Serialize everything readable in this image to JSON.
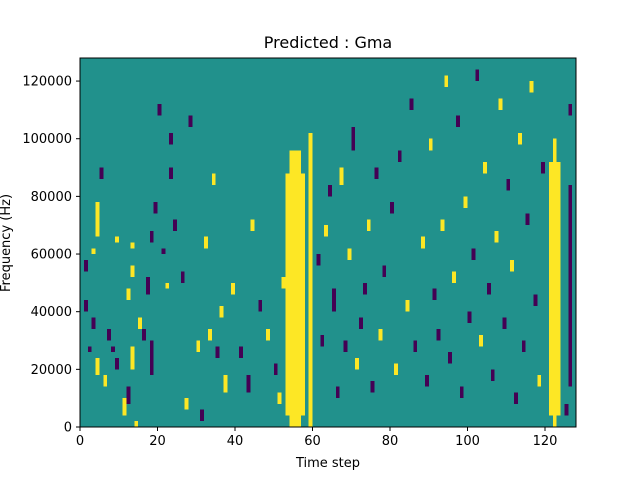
{
  "chart_data": {
    "type": "heatmap",
    "title": "Predicted : Gma",
    "xlabel": "Time step",
    "ylabel": "Frequency (Hz)",
    "xlim": [
      0,
      128
    ],
    "ylim": [
      0,
      128000
    ],
    "x_ticks": [
      0,
      20,
      40,
      60,
      80,
      100,
      120
    ],
    "y_ticks": [
      0,
      20000,
      40000,
      60000,
      80000,
      100000,
      120000
    ],
    "grid": false,
    "colormap": "viridis",
    "value_range": [
      -1,
      1
    ],
    "background_value": 0,
    "colors": {
      "low": "#440154",
      "mid": "#21918c",
      "high": "#fde725"
    },
    "time_steps": 128,
    "frequency_bins": 64,
    "bin_height_hz": 2000,
    "bands": [
      {
        "value": 1,
        "x": [
          53,
          58
        ],
        "y": [
          4000,
          88000
        ]
      },
      {
        "value": 1,
        "x": [
          54,
          57
        ],
        "y": [
          0,
          96000
        ]
      },
      {
        "value": 1,
        "x": [
          59,
          60
        ],
        "y": [
          0,
          102000
        ]
      },
      {
        "value": 1,
        "x": [
          121,
          124
        ],
        "y": [
          4000,
          92000
        ]
      },
      {
        "value": 1,
        "x": [
          122,
          123
        ],
        "y": [
          0,
          100000
        ]
      },
      {
        "value": -1,
        "x": [
          126,
          127
        ],
        "y": [
          14000,
          84000
        ]
      }
    ],
    "cells": [
      [
        1,
        2,
        54000,
        58000,
        -1
      ],
      [
        1,
        2,
        40000,
        44000,
        -1
      ],
      [
        2,
        3,
        26000,
        28000,
        -1
      ],
      [
        3,
        4,
        34000,
        38000,
        -1
      ],
      [
        4,
        5,
        22000,
        24000,
        1
      ],
      [
        5,
        6,
        86000,
        90000,
        -1
      ],
      [
        3,
        4,
        60000,
        62000,
        1
      ],
      [
        4,
        5,
        66000,
        78000,
        1
      ],
      [
        4,
        5,
        18000,
        22000,
        1
      ],
      [
        6,
        7,
        14000,
        18000,
        1
      ],
      [
        7,
        8,
        30000,
        34000,
        -1
      ],
      [
        8,
        9,
        26000,
        28000,
        -1
      ],
      [
        9,
        10,
        20000,
        24000,
        -1
      ],
      [
        9,
        10,
        64000,
        66000,
        1
      ],
      [
        11,
        12,
        4000,
        10000,
        1
      ],
      [
        12,
        13,
        8000,
        14000,
        -1
      ],
      [
        12,
        13,
        44000,
        48000,
        1
      ],
      [
        13,
        14,
        52000,
        56000,
        1
      ],
      [
        13,
        14,
        20000,
        28000,
        1
      ],
      [
        13,
        14,
        62000,
        64000,
        1
      ],
      [
        14,
        15,
        0,
        2000,
        1
      ],
      [
        15,
        16,
        34000,
        38000,
        1
      ],
      [
        16,
        17,
        30000,
        34000,
        -1
      ],
      [
        17,
        18,
        46000,
        52000,
        -1
      ],
      [
        18,
        19,
        18000,
        30000,
        -1
      ],
      [
        18,
        19,
        64000,
        68000,
        -1
      ],
      [
        19,
        20,
        74000,
        78000,
        -1
      ],
      [
        20,
        21,
        108000,
        112000,
        -1
      ],
      [
        21,
        22,
        60000,
        62000,
        -1
      ],
      [
        22,
        23,
        48000,
        50000,
        1
      ],
      [
        23,
        24,
        98000,
        102000,
        -1
      ],
      [
        23,
        24,
        86000,
        90000,
        -1
      ],
      [
        24,
        25,
        68000,
        72000,
        -1
      ],
      [
        26,
        27,
        50000,
        54000,
        -1
      ],
      [
        27,
        28,
        6000,
        10000,
        1
      ],
      [
        28,
        29,
        104000,
        108000,
        -1
      ],
      [
        30,
        31,
        26000,
        30000,
        1
      ],
      [
        31,
        32,
        2000,
        6000,
        -1
      ],
      [
        32,
        33,
        62000,
        66000,
        1
      ],
      [
        33,
        34,
        30000,
        34000,
        1
      ],
      [
        34,
        35,
        84000,
        88000,
        1
      ],
      [
        35,
        36,
        24000,
        28000,
        -1
      ],
      [
        36,
        37,
        38000,
        42000,
        1
      ],
      [
        37,
        38,
        12000,
        18000,
        1
      ],
      [
        39,
        40,
        46000,
        50000,
        1
      ],
      [
        41,
        42,
        24000,
        28000,
        -1
      ],
      [
        43,
        44,
        12000,
        18000,
        -1
      ],
      [
        44,
        45,
        68000,
        72000,
        1
      ],
      [
        46,
        47,
        40000,
        44000,
        -1
      ],
      [
        48,
        49,
        30000,
        34000,
        1
      ],
      [
        50,
        51,
        18000,
        22000,
        -1
      ],
      [
        51,
        52,
        8000,
        12000,
        1
      ],
      [
        52,
        53,
        48000,
        52000,
        1
      ],
      [
        61,
        62,
        56000,
        60000,
        -1
      ],
      [
        62,
        63,
        28000,
        32000,
        -1
      ],
      [
        63,
        64,
        66000,
        70000,
        1
      ],
      [
        64,
        65,
        80000,
        84000,
        -1
      ],
      [
        65,
        66,
        40000,
        48000,
        -1
      ],
      [
        66,
        67,
        10000,
        14000,
        -1
      ],
      [
        67,
        68,
        84000,
        90000,
        1
      ],
      [
        68,
        69,
        26000,
        30000,
        -1
      ],
      [
        69,
        70,
        58000,
        62000,
        1
      ],
      [
        70,
        71,
        96000,
        104000,
        -1
      ],
      [
        71,
        72,
        20000,
        24000,
        1
      ],
      [
        72,
        73,
        34000,
        38000,
        -1
      ],
      [
        73,
        74,
        46000,
        50000,
        -1
      ],
      [
        74,
        75,
        68000,
        72000,
        1
      ],
      [
        75,
        76,
        12000,
        16000,
        -1
      ],
      [
        76,
        77,
        86000,
        90000,
        -1
      ],
      [
        77,
        78,
        30000,
        34000,
        1
      ],
      [
        78,
        79,
        52000,
        56000,
        -1
      ],
      [
        80,
        81,
        74000,
        78000,
        -1
      ],
      [
        81,
        82,
        18000,
        22000,
        1
      ],
      [
        82,
        83,
        92000,
        96000,
        -1
      ],
      [
        84,
        85,
        40000,
        44000,
        1
      ],
      [
        85,
        86,
        110000,
        114000,
        -1
      ],
      [
        86,
        87,
        26000,
        30000,
        -1
      ],
      [
        88,
        89,
        62000,
        66000,
        1
      ],
      [
        89,
        90,
        14000,
        18000,
        -1
      ],
      [
        90,
        91,
        96000,
        100000,
        1
      ],
      [
        91,
        92,
        44000,
        48000,
        -1
      ],
      [
        92,
        93,
        30000,
        34000,
        -1
      ],
      [
        93,
        94,
        68000,
        72000,
        1
      ],
      [
        94,
        95,
        118000,
        122000,
        1
      ],
      [
        95,
        96,
        22000,
        26000,
        -1
      ],
      [
        96,
        97,
        50000,
        54000,
        1
      ],
      [
        97,
        98,
        104000,
        108000,
        -1
      ],
      [
        98,
        99,
        10000,
        14000,
        -1
      ],
      [
        99,
        100,
        76000,
        80000,
        1
      ],
      [
        100,
        101,
        36000,
        40000,
        -1
      ],
      [
        101,
        102,
        58000,
        62000,
        -1
      ],
      [
        102,
        103,
        120000,
        124000,
        -1
      ],
      [
        103,
        104,
        28000,
        32000,
        1
      ],
      [
        104,
        105,
        88000,
        92000,
        1
      ],
      [
        105,
        106,
        46000,
        50000,
        -1
      ],
      [
        106,
        107,
        16000,
        20000,
        -1
      ],
      [
        107,
        108,
        64000,
        68000,
        1
      ],
      [
        108,
        109,
        110000,
        114000,
        1
      ],
      [
        109,
        110,
        34000,
        38000,
        -1
      ],
      [
        110,
        111,
        82000,
        86000,
        -1
      ],
      [
        111,
        112,
        54000,
        58000,
        1
      ],
      [
        112,
        113,
        8000,
        12000,
        -1
      ],
      [
        113,
        114,
        98000,
        102000,
        1
      ],
      [
        114,
        115,
        26000,
        30000,
        -1
      ],
      [
        115,
        116,
        70000,
        74000,
        -1
      ],
      [
        116,
        117,
        116000,
        120000,
        1
      ],
      [
        117,
        118,
        42000,
        46000,
        -1
      ],
      [
        118,
        119,
        14000,
        18000,
        1
      ],
      [
        119,
        120,
        88000,
        92000,
        -1
      ],
      [
        125,
        126,
        4000,
        8000,
        -1
      ],
      [
        126,
        127,
        108000,
        112000,
        -1
      ]
    ]
  }
}
